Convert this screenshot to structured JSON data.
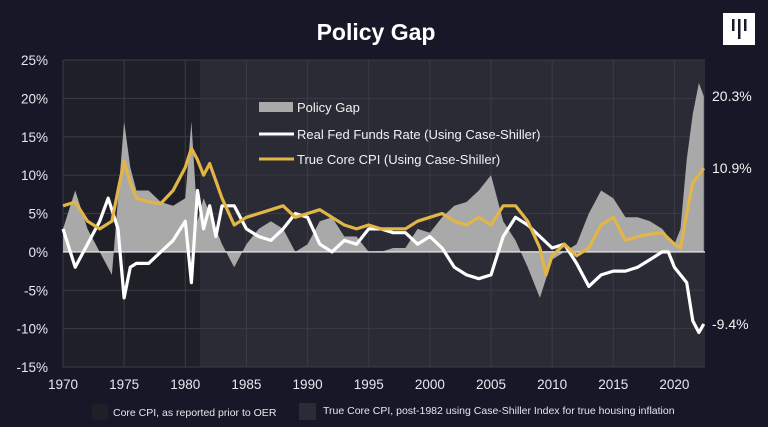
{
  "chart_data": {
    "type": "line",
    "title": "Policy Gap",
    "xlim": [
      1970,
      2022.5
    ],
    "ylim": [
      -15,
      25
    ],
    "x_ticks": [
      "1970",
      "1975",
      "1980",
      "1985",
      "1990",
      "1995",
      "2000",
      "2005",
      "2010",
      "2015",
      "2020"
    ],
    "y_ticks": [
      "25%",
      "20%",
      "15%",
      "10%",
      "5%",
      "0%",
      "-5%",
      "-10%",
      "-15%"
    ],
    "grid": true,
    "legend_position": "top-center",
    "shaded_regions": [
      {
        "label": "Core CPI, as reported prior to OER",
        "from": 1970,
        "to": 1981.2,
        "color": "#1f2027"
      },
      {
        "label": "True Core CPI, post-1982 using Case-Shiller Index for true housing inflation",
        "from": 1981.2,
        "to": 2022.5,
        "color": "#2a2b35"
      }
    ],
    "series": [
      {
        "name": "Policy Gap",
        "style": "area",
        "color": "#a9a9a9",
        "end_label": "20.3%",
        "points": [
          [
            1970,
            3
          ],
          [
            1971,
            8
          ],
          [
            1972,
            3
          ],
          [
            1973,
            0
          ],
          [
            1974,
            -3
          ],
          [
            1974.6,
            9
          ],
          [
            1975,
            17
          ],
          [
            1975.5,
            11
          ],
          [
            1976,
            8
          ],
          [
            1977,
            8
          ],
          [
            1978,
            6.5
          ],
          [
            1979,
            6
          ],
          [
            1980,
            7
          ],
          [
            1980.5,
            17
          ],
          [
            1981,
            4
          ],
          [
            1981.5,
            7
          ],
          [
            1982,
            5
          ],
          [
            1983,
            1
          ],
          [
            1984,
            -2
          ],
          [
            1985,
            1
          ],
          [
            1986,
            3
          ],
          [
            1987,
            4
          ],
          [
            1988,
            3
          ],
          [
            1989,
            0
          ],
          [
            1990,
            1
          ],
          [
            1991,
            4
          ],
          [
            1992,
            4.5
          ],
          [
            1993,
            2
          ],
          [
            1994,
            2
          ],
          [
            1995,
            0
          ],
          [
            1996,
            0
          ],
          [
            1997,
            0.5
          ],
          [
            1998,
            0.5
          ],
          [
            1999,
            3
          ],
          [
            2000,
            2.5
          ],
          [
            2001,
            4.5
          ],
          [
            2002,
            6
          ],
          [
            2003,
            6.5
          ],
          [
            2004,
            8
          ],
          [
            2005,
            10
          ],
          [
            2006,
            4
          ],
          [
            2007,
            1.5
          ],
          [
            2008,
            -2
          ],
          [
            2009,
            -6
          ],
          [
            2010,
            -1
          ],
          [
            2011,
            0
          ],
          [
            2012,
            1
          ],
          [
            2013,
            5
          ],
          [
            2014,
            8
          ],
          [
            2015,
            7
          ],
          [
            2016,
            4.5
          ],
          [
            2017,
            4.5
          ],
          [
            2018,
            4
          ],
          [
            2019,
            3
          ],
          [
            2020,
            1
          ],
          [
            2020.5,
            3
          ],
          [
            2021,
            12
          ],
          [
            2021.5,
            18
          ],
          [
            2022,
            22
          ],
          [
            2022.4,
            20.3
          ]
        ]
      },
      {
        "name": "Real Fed Funds Rate (Using Case-Shiller)",
        "style": "line",
        "color": "#ffffff",
        "end_label": "-9.4%",
        "points": [
          [
            1970,
            3
          ],
          [
            1971,
            -2
          ],
          [
            1972,
            1
          ],
          [
            1973,
            4
          ],
          [
            1973.7,
            7
          ],
          [
            1974.5,
            3
          ],
          [
            1975,
            -6
          ],
          [
            1975.5,
            -2
          ],
          [
            1976,
            -1.5
          ],
          [
            1977,
            -1.5
          ],
          [
            1978,
            0
          ],
          [
            1979,
            1.5
          ],
          [
            1980,
            4
          ],
          [
            1980.5,
            -4
          ],
          [
            1981,
            8
          ],
          [
            1981.5,
            3
          ],
          [
            1982,
            6
          ],
          [
            1982.5,
            2
          ],
          [
            1983,
            6
          ],
          [
            1984,
            6
          ],
          [
            1985,
            3
          ],
          [
            1986,
            2
          ],
          [
            1987,
            1.5
          ],
          [
            1988,
            3
          ],
          [
            1989,
            5
          ],
          [
            1990,
            4.5
          ],
          [
            1991,
            1
          ],
          [
            1992,
            0
          ],
          [
            1993,
            1.5
          ],
          [
            1994,
            1
          ],
          [
            1995,
            3
          ],
          [
            1996,
            3
          ],
          [
            1997,
            2.5
          ],
          [
            1998,
            2.5
          ],
          [
            1999,
            1
          ],
          [
            2000,
            2
          ],
          [
            2001,
            0.5
          ],
          [
            2002,
            -2
          ],
          [
            2003,
            -3
          ],
          [
            2004,
            -3.5
          ],
          [
            2005,
            -3
          ],
          [
            2006,
            2
          ],
          [
            2007,
            4.5
          ],
          [
            2008,
            3.5
          ],
          [
            2009,
            2
          ],
          [
            2010,
            0.5
          ],
          [
            2011,
            1
          ],
          [
            2012,
            -1.5
          ],
          [
            2013,
            -4.5
          ],
          [
            2014,
            -3
          ],
          [
            2015,
            -2.5
          ],
          [
            2016,
            -2.5
          ],
          [
            2017,
            -2
          ],
          [
            2018,
            -1
          ],
          [
            2019,
            0
          ],
          [
            2019.5,
            0
          ],
          [
            2020,
            -2
          ],
          [
            2021,
            -4
          ],
          [
            2021.5,
            -9
          ],
          [
            2022,
            -10.5
          ],
          [
            2022.4,
            -9.4
          ]
        ]
      },
      {
        "name": "True Core CPI (Using Case-Shiller)",
        "style": "line",
        "color": "#e2b547",
        "end_label": "10.9%",
        "points": [
          [
            1970,
            6
          ],
          [
            1971,
            6.5
          ],
          [
            1972,
            4
          ],
          [
            1973,
            3
          ],
          [
            1974,
            4
          ],
          [
            1974.5,
            8
          ],
          [
            1975,
            11.8
          ],
          [
            1975.5,
            9
          ],
          [
            1976,
            7
          ],
          [
            1977,
            6.5
          ],
          [
            1978,
            6.3
          ],
          [
            1979,
            8
          ],
          [
            1980,
            11
          ],
          [
            1980.5,
            13.5
          ],
          [
            1981,
            12
          ],
          [
            1981.5,
            10
          ],
          [
            1982,
            11.5
          ],
          [
            1983,
            7
          ],
          [
            1984,
            3.5
          ],
          [
            1985,
            4.5
          ],
          [
            1986,
            5
          ],
          [
            1987,
            5.5
          ],
          [
            1988,
            6
          ],
          [
            1989,
            4.5
          ],
          [
            1990,
            5
          ],
          [
            1991,
            5.5
          ],
          [
            1992,
            4.5
          ],
          [
            1993,
            3.5
          ],
          [
            1994,
            3
          ],
          [
            1995,
            3.5
          ],
          [
            1996,
            3
          ],
          [
            1997,
            3
          ],
          [
            1998,
            3
          ],
          [
            1999,
            4
          ],
          [
            2000,
            4.5
          ],
          [
            2001,
            5
          ],
          [
            2002,
            4
          ],
          [
            2003,
            3.5
          ],
          [
            2004,
            4.5
          ],
          [
            2005,
            3.5
          ],
          [
            2006,
            6
          ],
          [
            2007,
            6
          ],
          [
            2008,
            4
          ],
          [
            2009,
            0.5
          ],
          [
            2009.5,
            -3
          ],
          [
            2010,
            -0.5
          ],
          [
            2011,
            1
          ],
          [
            2012,
            -0.5
          ],
          [
            2013,
            0.5
          ],
          [
            2014,
            3.5
          ],
          [
            2015,
            4.5
          ],
          [
            2016,
            1.5
          ],
          [
            2017,
            2
          ],
          [
            2018,
            2.3
          ],
          [
            2019,
            2.5
          ],
          [
            2020,
            1
          ],
          [
            2020.5,
            0.5
          ],
          [
            2021,
            5
          ],
          [
            2021.5,
            9
          ],
          [
            2022,
            10
          ],
          [
            2022.4,
            10.9
          ]
        ]
      }
    ]
  },
  "logo": "ılı"
}
